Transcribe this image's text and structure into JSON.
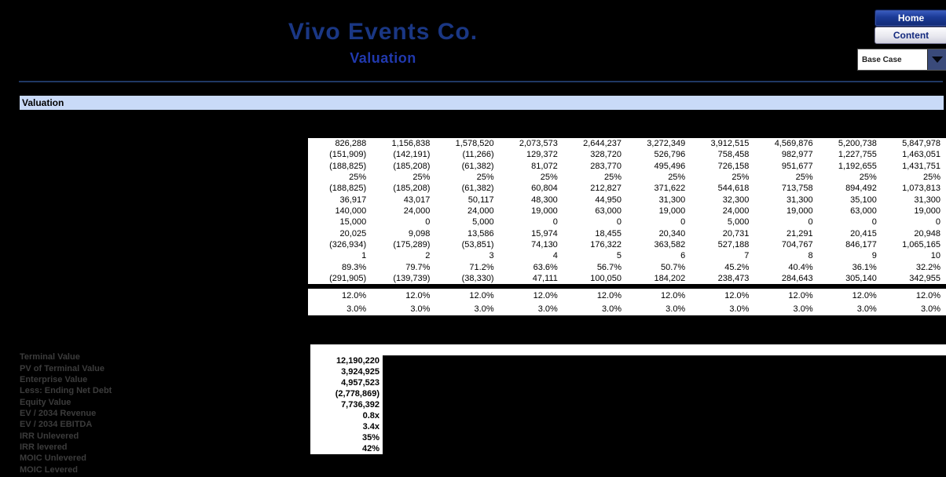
{
  "header": {
    "title": "Vivo Events Co.",
    "subtitle": "Valuation",
    "home_label": "Home",
    "content_label": "Content",
    "scenario_selected": "Base Case"
  },
  "section": {
    "title": "Valuation"
  },
  "main_table": {
    "rows": [
      [
        "826,288",
        "1,156,838",
        "1,578,520",
        "2,073,573",
        "2,644,237",
        "3,272,349",
        "3,912,515",
        "4,569,876",
        "5,200,738",
        "5,847,978"
      ],
      [
        "(151,909)",
        "(142,191)",
        "(11,266)",
        "129,372",
        "328,720",
        "526,796",
        "758,458",
        "982,977",
        "1,227,755",
        "1,463,051"
      ],
      [
        "(188,825)",
        "(185,208)",
        "(61,382)",
        "81,072",
        "283,770",
        "495,496",
        "726,158",
        "951,677",
        "1,192,655",
        "1,431,751"
      ],
      [
        "25%",
        "25%",
        "25%",
        "25%",
        "25%",
        "25%",
        "25%",
        "25%",
        "25%",
        "25%"
      ],
      [
        "(188,825)",
        "(185,208)",
        "(61,382)",
        "60,804",
        "212,827",
        "371,622",
        "544,618",
        "713,758",
        "894,492",
        "1,073,813"
      ],
      [
        "36,917",
        "43,017",
        "50,117",
        "48,300",
        "44,950",
        "31,300",
        "32,300",
        "31,300",
        "35,100",
        "31,300"
      ],
      [
        "140,000",
        "24,000",
        "24,000",
        "19,000",
        "63,000",
        "19,000",
        "24,000",
        "19,000",
        "63,000",
        "19,000"
      ],
      [
        "15,000",
        "0",
        "5,000",
        "0",
        "0",
        "0",
        "5,000",
        "0",
        "0",
        "0"
      ],
      [
        "20,025",
        "9,098",
        "13,586",
        "15,974",
        "18,455",
        "20,340",
        "20,731",
        "21,291",
        "20,415",
        "20,948"
      ],
      [
        "(326,934)",
        "(175,289)",
        "(53,851)",
        "74,130",
        "176,322",
        "363,582",
        "527,188",
        "704,767",
        "846,177",
        "1,065,165"
      ],
      [
        "1",
        "2",
        "3",
        "4",
        "5",
        "6",
        "7",
        "8",
        "9",
        "10"
      ],
      [
        "89.3%",
        "79.7%",
        "71.2%",
        "63.6%",
        "56.7%",
        "50.7%",
        "45.2%",
        "40.4%",
        "36.1%",
        "32.2%"
      ],
      [
        "(291,905)",
        "(139,739)",
        "(38,330)",
        "47,111",
        "100,050",
        "184,202",
        "238,473",
        "284,643",
        "305,140",
        "342,955"
      ]
    ]
  },
  "rates_table": {
    "rows": [
      [
        "12.0%",
        "12.0%",
        "12.0%",
        "12.0%",
        "12.0%",
        "12.0%",
        "12.0%",
        "12.0%",
        "12.0%",
        "12.0%"
      ],
      [
        "3.0%",
        "3.0%",
        "3.0%",
        "3.0%",
        "3.0%",
        "3.0%",
        "3.0%",
        "3.0%",
        "3.0%",
        "3.0%"
      ]
    ]
  },
  "summary": {
    "items": [
      {
        "label": "Terminal Value",
        "value": "12,190,220"
      },
      {
        "label": "PV of Terminal Value",
        "value": "3,924,925"
      },
      {
        "label": "Enterprise Value",
        "value": "4,957,523"
      },
      {
        "label": "Less: Ending Net Debt",
        "value": "(2,778,869)"
      },
      {
        "label": "Equity Value",
        "value": "7,736,392"
      },
      {
        "label": "EV / 2034 Revenue",
        "value": "0.8x"
      },
      {
        "label": "EV / 2034 EBITDA",
        "value": "3.4x"
      },
      {
        "label": "IRR Unlevered",
        "value": "35%"
      },
      {
        "label": "IRR levered",
        "value": "42%"
      },
      {
        "label": "MOIC Unlevered",
        "value": ""
      },
      {
        "label": "MOIC Levered",
        "value": ""
      }
    ]
  },
  "colors": {
    "background": "#000000",
    "title_navy": "#1A3784",
    "subtitle_blue": "#2139AE",
    "rule_navy": "#1F3864",
    "section_bar_blue": "#C9DAF8",
    "home_button_navy": "#1B3A96",
    "cell_white": "#FFFFFF",
    "label_gray": "#3C3C3C"
  }
}
